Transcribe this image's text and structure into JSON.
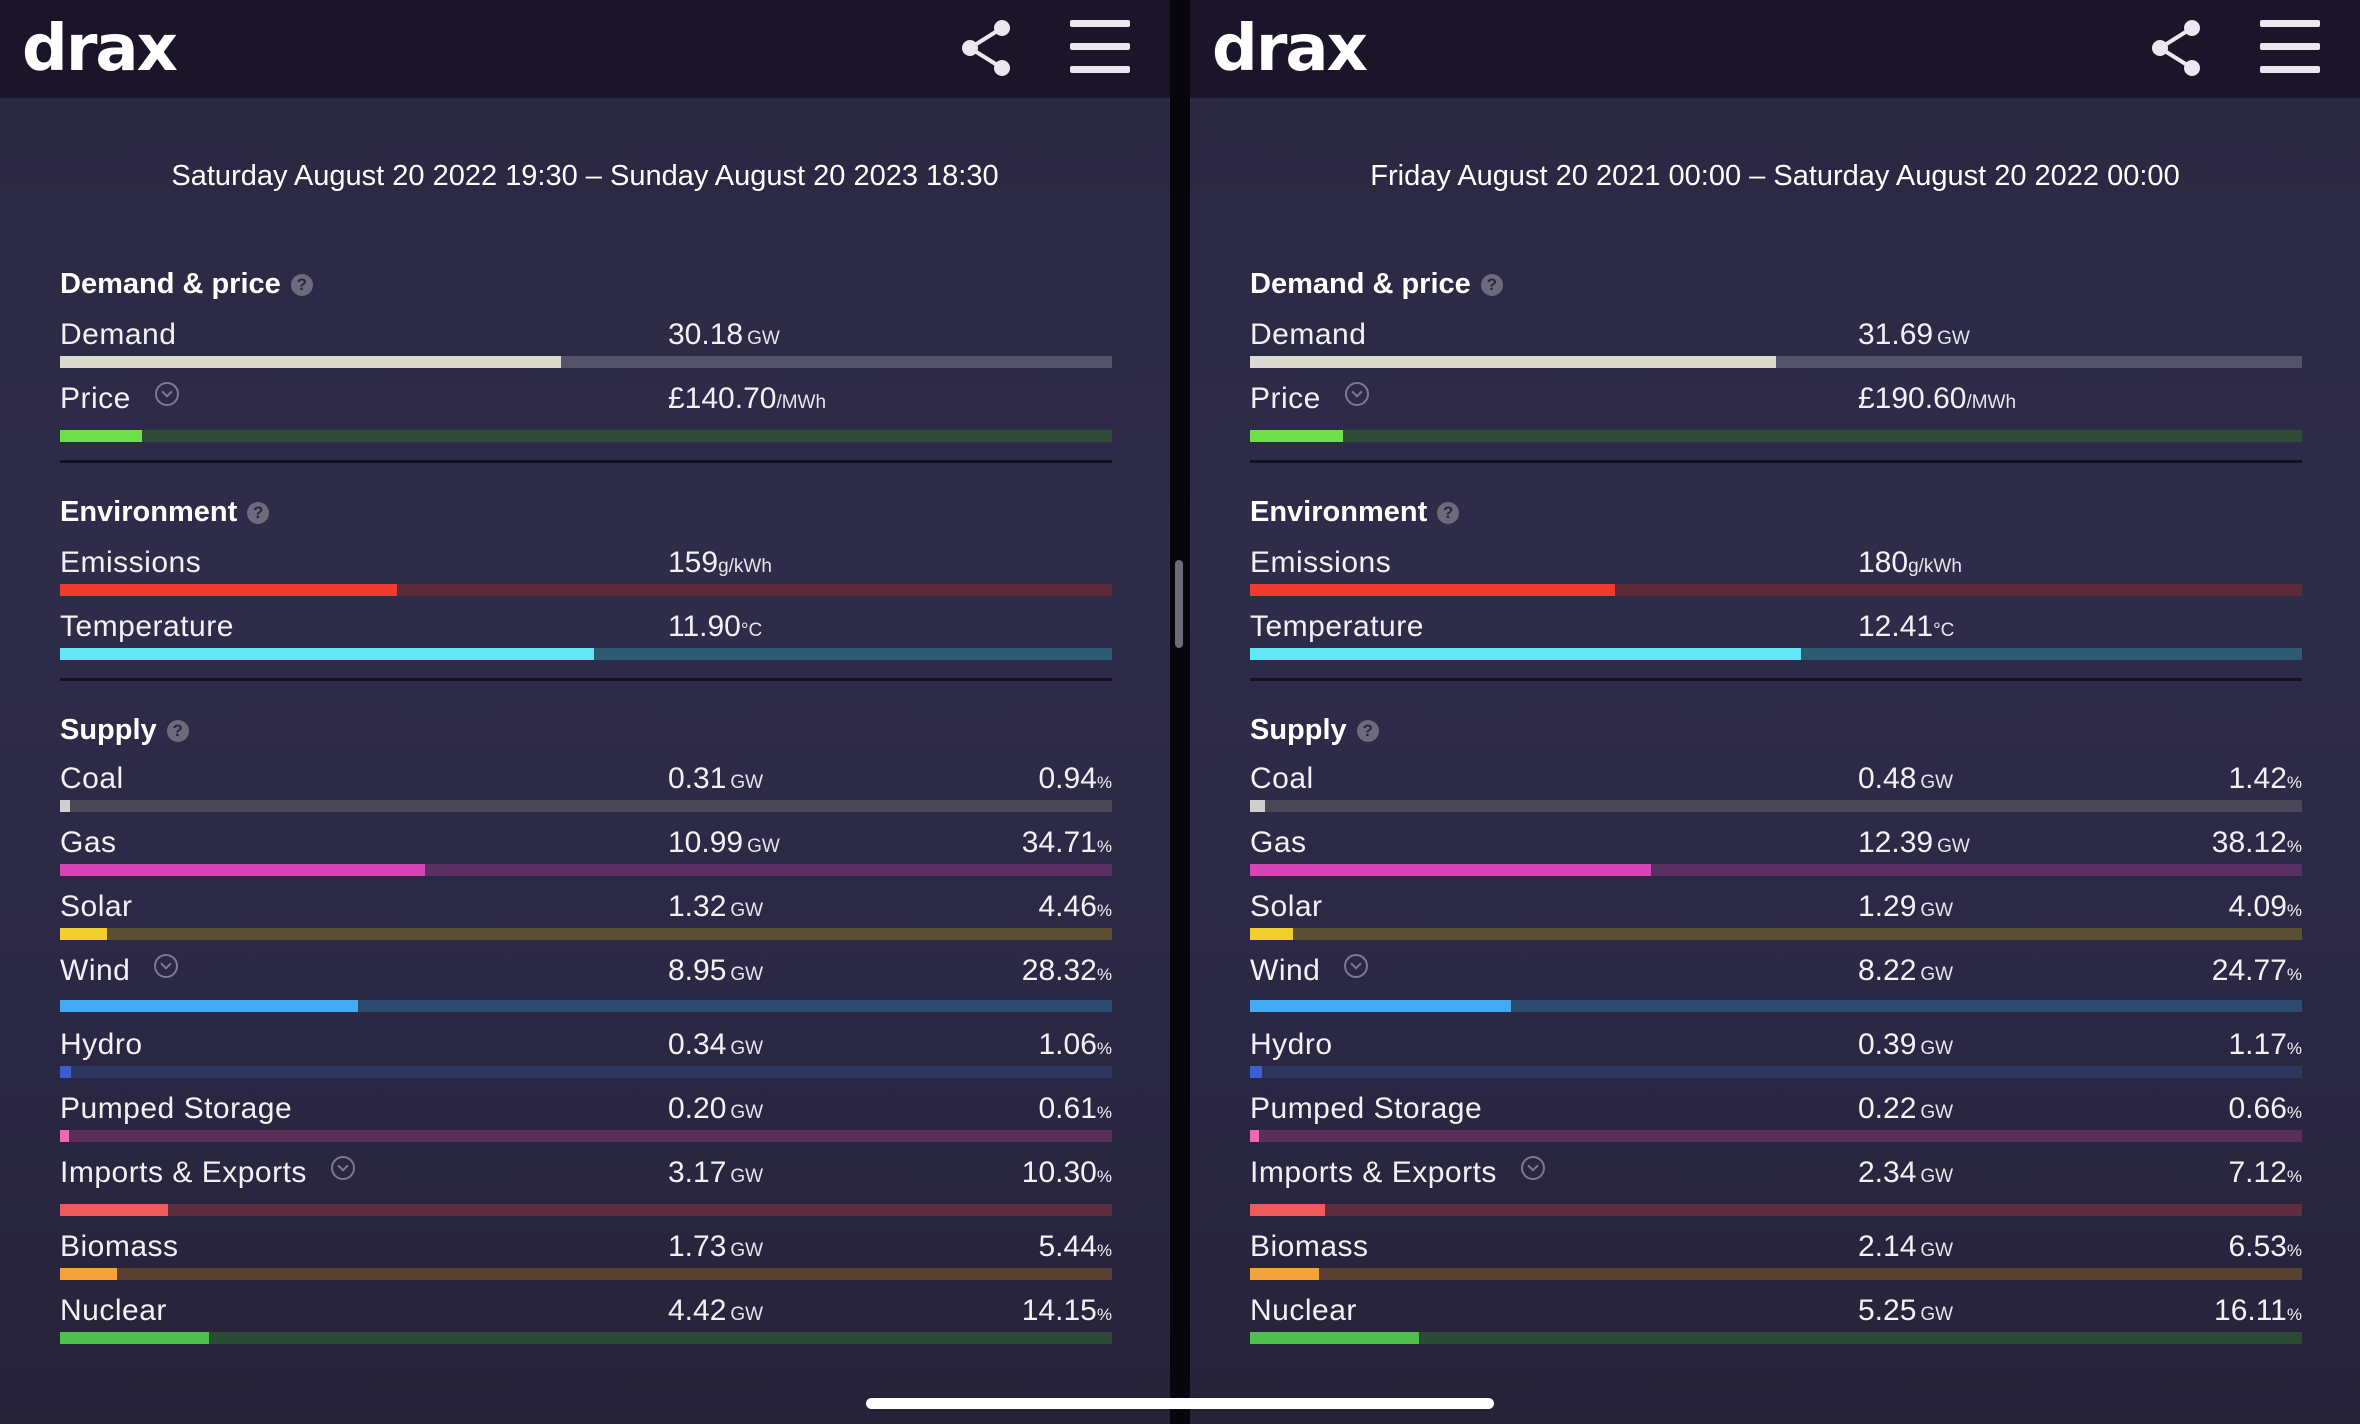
{
  "panes": [
    {
      "logo": "drax",
      "date_range": "Saturday August 20 2022 19:30 – Sunday August 20 2023 18:30",
      "sections": {
        "demand_price": {
          "title": "Demand & price"
        },
        "environment": {
          "title": "Environment"
        },
        "supply": {
          "title": "Supply"
        }
      },
      "demand": {
        "label": "Demand",
        "value": "30.18",
        "unit": "GW",
        "fill": 0.476
      },
      "price": {
        "label": "Price",
        "value": "£140.70",
        "unit": "/MWh",
        "fill": 0.078
      },
      "emissions": {
        "label": "Emissions",
        "value": "159",
        "unit": "g/kWh",
        "fill": 0.32
      },
      "temperature": {
        "label": "Temperature",
        "value": "11.90",
        "unit": "°C",
        "fill": 0.508
      },
      "supply": [
        {
          "label": "Coal",
          "value": "0.31",
          "unit": "GW",
          "pct": "0.94",
          "pct_unit": "%",
          "fill": 0.0094
        },
        {
          "label": "Gas",
          "value": "10.99",
          "unit": "GW",
          "pct": "34.71",
          "pct_unit": "%",
          "fill": 0.3471
        },
        {
          "label": "Solar",
          "value": "1.32",
          "unit": "GW",
          "pct": "4.46",
          "pct_unit": "%",
          "fill": 0.0446
        },
        {
          "label": "Wind",
          "value": "8.95",
          "unit": "GW",
          "pct": "28.32",
          "pct_unit": "%",
          "fill": 0.2832
        },
        {
          "label": "Hydro",
          "value": "0.34",
          "unit": "GW",
          "pct": "1.06",
          "pct_unit": "%",
          "fill": 0.0106
        },
        {
          "label": "Pumped Storage",
          "value": "0.20",
          "unit": "GW",
          "pct": "0.61",
          "pct_unit": "%",
          "fill": 0.0061
        },
        {
          "label": "Imports & Exports",
          "value": "3.17",
          "unit": "GW",
          "pct": "10.30",
          "pct_unit": "%",
          "fill": 0.103
        },
        {
          "label": "Biomass",
          "value": "1.73",
          "unit": "GW",
          "pct": "5.44",
          "pct_unit": "%",
          "fill": 0.0544
        },
        {
          "label": "Nuclear",
          "value": "4.42",
          "unit": "GW",
          "pct": "14.15",
          "pct_unit": "%",
          "fill": 0.1415
        }
      ]
    },
    {
      "logo": "drax",
      "date_range": "Friday August 20 2021 00:00 – Saturday August 20 2022 00:00",
      "sections": {
        "demand_price": {
          "title": "Demand & price"
        },
        "environment": {
          "title": "Environment"
        },
        "supply": {
          "title": "Supply"
        }
      },
      "demand": {
        "label": "Demand",
        "value": "31.69",
        "unit": "GW",
        "fill": 0.5
      },
      "price": {
        "label": "Price",
        "value": "£190.60",
        "unit": "/MWh",
        "fill": 0.088
      },
      "emissions": {
        "label": "Emissions",
        "value": "180",
        "unit": "g/kWh",
        "fill": 0.347
      },
      "temperature": {
        "label": "Temperature",
        "value": "12.41",
        "unit": "°C",
        "fill": 0.524
      },
      "supply": [
        {
          "label": "Coal",
          "value": "0.48",
          "unit": "GW",
          "pct": "1.42",
          "pct_unit": "%",
          "fill": 0.0142
        },
        {
          "label": "Gas",
          "value": "12.39",
          "unit": "GW",
          "pct": "38.12",
          "pct_unit": "%",
          "fill": 0.3812
        },
        {
          "label": "Solar",
          "value": "1.29",
          "unit": "GW",
          "pct": "4.09",
          "pct_unit": "%",
          "fill": 0.0409
        },
        {
          "label": "Wind",
          "value": "8.22",
          "unit": "GW",
          "pct": "24.77",
          "pct_unit": "%",
          "fill": 0.2477
        },
        {
          "label": "Hydro",
          "value": "0.39",
          "unit": "GW",
          "pct": "1.17",
          "pct_unit": "%",
          "fill": 0.0117
        },
        {
          "label": "Pumped Storage",
          "value": "0.22",
          "unit": "GW",
          "pct": "0.66",
          "pct_unit": "%",
          "fill": 0.0066
        },
        {
          "label": "Imports & Exports",
          "value": "2.34",
          "unit": "GW",
          "pct": "7.12",
          "pct_unit": "%",
          "fill": 0.0712
        },
        {
          "label": "Biomass",
          "value": "2.14",
          "unit": "GW",
          "pct": "6.53",
          "pct_unit": "%",
          "fill": 0.0653
        },
        {
          "label": "Nuclear",
          "value": "5.25",
          "unit": "GW",
          "pct": "16.11",
          "pct_unit": "%",
          "fill": 0.1611
        }
      ]
    }
  ],
  "colors": {
    "demand": {
      "fill": "#dcdad0",
      "track": "#55536a"
    },
    "price": {
      "fill": "#6fe04a",
      "track": "#2f4b35"
    },
    "emissions": {
      "fill": "#f0392f",
      "track": "#5c2a39"
    },
    "temperature": {
      "fill": "#62e8f4",
      "track": "#2c5b72"
    },
    "coal": {
      "fill": "#cfcfcf",
      "track": "#4a4856"
    },
    "gas": {
      "fill": "#d545b3",
      "track": "#5a2f61"
    },
    "solar": {
      "fill": "#f2cf2c",
      "track": "#5a4e33"
    },
    "wind": {
      "fill": "#45aaf4",
      "track": "#2c4a6e"
    },
    "hydro": {
      "fill": "#3b5fd0",
      "track": "#2e3760"
    },
    "pumped_storage": {
      "fill": "#f067b3",
      "track": "#5c2f5a"
    },
    "imports_exports": {
      "fill": "#ef5a5c",
      "track": "#5b2d3d"
    },
    "biomass": {
      "fill": "#f4a23b",
      "track": "#5a3f33"
    },
    "nuclear": {
      "fill": "#4fc04d",
      "track": "#2c4a35"
    }
  },
  "icons": {
    "share": "share-icon",
    "menu": "hamburger-menu-icon",
    "help": "help-icon",
    "expand": "chevron-down-icon"
  }
}
